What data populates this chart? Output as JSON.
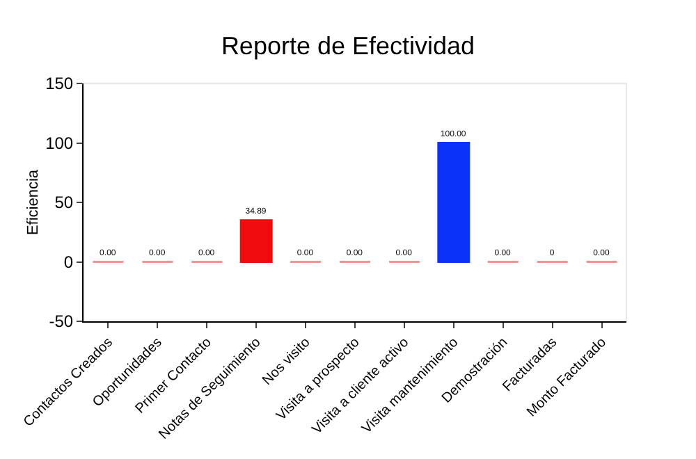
{
  "chart_data": {
    "type": "bar",
    "title": "Reporte de Efectividad",
    "ylabel": "Eficiencia",
    "categories": [
      "Contactos Creados",
      "Oportunidades",
      "Primer Contacto",
      "Notas de Seguimiento",
      "Nos visito",
      "Visita a prospecto",
      "Visita a cliente activo",
      "Visita mantenimiento",
      "Demostración",
      "Facturadas",
      "Monto Facturado"
    ],
    "values": [
      0,
      0,
      0,
      34.89,
      0,
      0,
      0,
      100,
      0,
      0,
      0
    ],
    "colors": [
      "#f89090",
      "#f89090",
      "#f89090",
      "#f00c0c",
      "#f89090",
      "#f89090",
      "#f89090",
      "#0a32f8",
      "#f89090",
      "#f89090",
      "#f89090"
    ],
    "value_labels": [
      "0.00",
      "0.00",
      "0.00",
      "34.89",
      "0.00",
      "0.00",
      "0.00",
      "100.00",
      "0.00",
      "0",
      "0.00"
    ],
    "ylim": [
      -50,
      150
    ],
    "yticks": [
      -50,
      0,
      50,
      100,
      150
    ],
    "grid": false
  }
}
